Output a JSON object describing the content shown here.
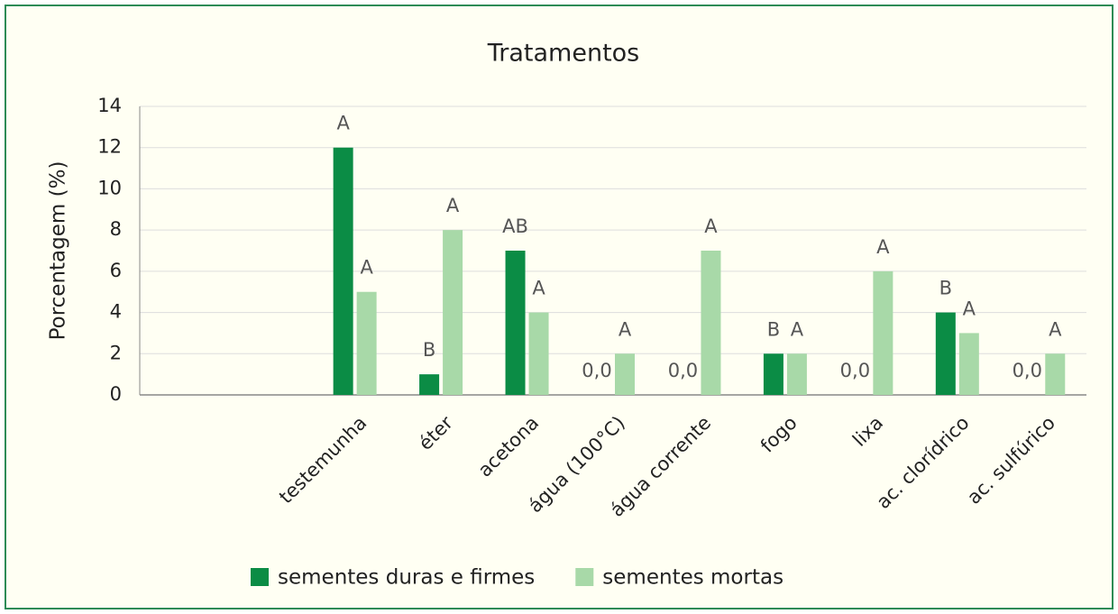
{
  "chart_data": {
    "type": "bar",
    "title": "Tratamentos",
    "y_label": "Porcentagem (%)",
    "categories": [
      null,
      null,
      "testemunha",
      "éter",
      "acetona",
      "água (100°C)",
      "água corrente",
      "fogo",
      "lixa",
      "ac. clorídrico",
      "ac. sulfúrico"
    ],
    "series": [
      {
        "name": "sementes duras e firmes",
        "color": "#0b8c45",
        "values": [
          null,
          null,
          12,
          1,
          7,
          0,
          0,
          2,
          0,
          4,
          0
        ],
        "value_labels": [
          null,
          null,
          "A",
          "B",
          "AB",
          "0,0",
          "0,0",
          "B",
          "0,0",
          "B",
          "0,0"
        ]
      },
      {
        "name": "sementes mortas",
        "color": "#a8d9a8",
        "values": [
          null,
          null,
          5,
          8,
          4,
          2,
          7,
          2,
          6,
          3,
          2
        ],
        "value_labels": [
          null,
          null,
          "A",
          "A",
          "A",
          "A",
          "A",
          "A",
          "A",
          "A",
          "A"
        ]
      }
    ],
    "ylim": [
      0,
      14
    ],
    "yticks": [
      0,
      2,
      4,
      6,
      8,
      10,
      12,
      14
    ],
    "grid": true,
    "legend": "bottom"
  }
}
